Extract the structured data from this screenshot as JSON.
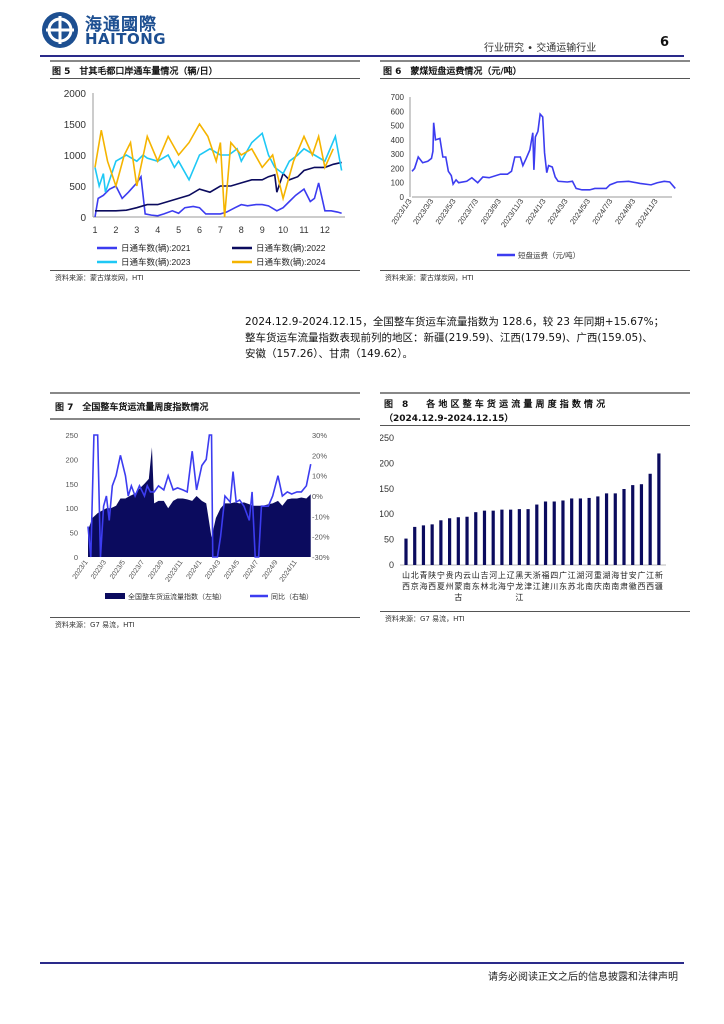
{
  "header": {
    "logo_cn": "海通國際",
    "logo_en": "HAITONG",
    "section": "行业研究 • 交通运输行业",
    "page_number": "6",
    "accent": "#1d4f91"
  },
  "paragraph": {
    "lines": [
      "2024.12.9-2024.12.15，全国整车货运车流量指数为 128.6，较 23 年同期+15.67%；",
      "整车货运车流量指数表现前列的地区：新疆(219.59)、江西(179.59)、广西(159.05)、",
      "安徽（157.26）、甘肃（149.62）。"
    ]
  },
  "figures": {
    "fig5": {
      "title": "图 5　甘其毛都口岸通车量情况（辆/日）",
      "source": "资料来源：蒙古煤炭网，HTI"
    },
    "fig6": {
      "title": "图 6　蒙煤短盘运费情况（元/吨）",
      "source": "资料来源：蒙古煤炭网，HTI"
    },
    "fig7": {
      "title": "图 7　全国整车货运流量周度指数情况",
      "source": "资料来源：G7 易流，HTI"
    },
    "fig8": {
      "title": "图　8　　各 地 区 整 车 货 运 流 量 周 度 指 数 情 况",
      "title2": "（2024.12.9-2024.12.15）",
      "source": "资料来源：G7 易流，HTI"
    }
  },
  "footer": {
    "disclaimer": "请务必阅读正文之后的信息披露和法律声明"
  },
  "chart_data": [
    {
      "id": "fig5",
      "type": "line",
      "xlabel": "",
      "ylabel": "",
      "xlim": [
        1,
        12.8
      ],
      "ylim": [
        0,
        2000
      ],
      "x_ticks": [
        "1",
        "2",
        "3",
        "4",
        "5",
        "6",
        "7",
        "8",
        "9",
        "10",
        "11",
        "12"
      ],
      "y_ticks": [
        "0",
        "500",
        "1000",
        "1500",
        "2000"
      ],
      "legend": "bottom",
      "series": [
        {
          "name": "日通车数(辆):2021",
          "color": "#3c3cf0",
          "x": [
            1,
            1.15,
            1.4,
            1.7,
            2,
            2.3,
            2.6,
            3,
            3.2,
            3.4,
            3.7,
            4,
            4.3,
            4.7,
            5,
            5.3,
            5.7,
            6,
            6.3,
            6.6,
            7,
            7.3,
            7.7,
            8,
            8.3,
            8.7,
            9,
            9.3,
            9.7,
            10,
            10.3,
            10.6,
            11,
            11.3,
            11.5,
            11.7,
            12,
            12.3,
            12.6,
            12.8
          ],
          "y": [
            0,
            300,
            350,
            450,
            500,
            300,
            400,
            550,
            650,
            50,
            30,
            20,
            50,
            100,
            60,
            150,
            170,
            150,
            50,
            50,
            50,
            80,
            150,
            200,
            180,
            200,
            200,
            180,
            100,
            150,
            250,
            350,
            450,
            250,
            300,
            550,
            100,
            100,
            80,
            60
          ]
        },
        {
          "name": "日通车数(辆):2022",
          "color": "#0b0b5e",
          "x": [
            1,
            1.5,
            2,
            2.5,
            3,
            3.5,
            4,
            4.5,
            5,
            5.5,
            6,
            6.5,
            7,
            7.5,
            8,
            8.5,
            9,
            9.3,
            9.6,
            9.7,
            10,
            10.3,
            10.7,
            11,
            11.5,
            12,
            12.4,
            12.8
          ],
          "y": [
            100,
            100,
            100,
            110,
            150,
            200,
            200,
            250,
            300,
            350,
            450,
            400,
            500,
            500,
            550,
            600,
            600,
            650,
            680,
            400,
            700,
            600,
            650,
            750,
            800,
            800,
            850,
            880
          ]
        },
        {
          "name": "日通车数(辆):2023",
          "color": "#1ec8f5",
          "x": [
            1,
            1.2,
            1.4,
            1.5,
            2,
            2.5,
            3,
            3.3,
            3.5,
            4,
            4.5,
            4.8,
            5,
            5.5,
            6,
            6.5,
            7,
            7.4,
            7.8,
            8,
            8.5,
            9,
            9.3,
            9.6,
            10,
            10.3,
            10.7,
            11,
            11.5,
            12,
            12.5,
            12.8
          ],
          "y": [
            800,
            500,
            700,
            400,
            900,
            1000,
            900,
            1000,
            950,
            900,
            1000,
            800,
            900,
            600,
            1000,
            1100,
            1000,
            1000,
            1100,
            900,
            1200,
            1350,
            1000,
            800,
            700,
            900,
            1000,
            1100,
            1000,
            900,
            1300,
            750
          ]
        },
        {
          "name": "日通车数(辆):2024",
          "color": "#f5b400",
          "x": [
            1,
            1.3,
            1.6,
            2,
            2.4,
            2.7,
            3,
            3.5,
            4,
            4.5,
            5,
            5.5,
            6,
            6.4,
            6.8,
            7,
            7.2,
            7.5,
            8,
            8.5,
            9,
            9.5,
            10,
            10.5,
            11,
            11.4,
            11.7,
            12,
            12.4
          ],
          "y": [
            800,
            1400,
            900,
            500,
            1000,
            1200,
            500,
            1300,
            900,
            1300,
            1000,
            1200,
            1500,
            1300,
            900,
            1200,
            0,
            1200,
            1000,
            1100,
            800,
            1000,
            300,
            900,
            1300,
            1000,
            1300,
            800,
            1100
          ]
        }
      ]
    },
    {
      "id": "fig6",
      "type": "line",
      "ylim": [
        0,
        700
      ],
      "y_ticks": [
        "0",
        "100",
        "200",
        "300",
        "400",
        "500",
        "600",
        "700"
      ],
      "x_ticks": [
        "2023/1/3",
        "2023/3/3",
        "2023/5/3",
        "2023/7/3",
        "2023/9/3",
        "2023/11/3",
        "2024/1/3",
        "2024/3/3",
        "2024/5/3",
        "2024/7/3",
        "2024/9/3",
        "2024/11/3"
      ],
      "legend": "bottom",
      "series": [
        {
          "name": "短盘运费（元/吨）",
          "color": "#3c3cf0",
          "x": [
            "2023-01-03",
            "2023-01-10",
            "2023-01-20",
            "2023-02-01",
            "2023-02-15",
            "2023-02-25",
            "2023-03-01",
            "2023-03-03",
            "2023-03-08",
            "2023-03-20",
            "2023-03-28",
            "2023-04-05",
            "2023-04-12",
            "2023-04-20",
            "2023-04-25",
            "2023-05-03",
            "2023-05-10",
            "2023-06-01",
            "2023-06-15",
            "2023-07-01",
            "2023-07-15",
            "2023-08-01",
            "2023-09-01",
            "2023-09-20",
            "2023-10-01",
            "2023-10-10",
            "2023-10-25",
            "2023-11-01",
            "2023-11-10",
            "2023-11-20",
            "2023-11-28",
            "2023-12-01",
            "2023-12-05",
            "2023-12-12",
            "2023-12-18",
            "2023-12-25",
            "2023-12-30",
            "2024-01-05",
            "2024-01-10",
            "2024-01-20",
            "2024-01-28",
            "2024-02-05",
            "2024-03-01",
            "2024-03-15",
            "2024-03-25",
            "2024-04-10",
            "2024-05-01",
            "2024-05-15",
            "2024-06-15",
            "2024-06-25",
            "2024-07-15",
            "2024-08-15",
            "2024-09-15",
            "2024-10-15",
            "2024-11-01",
            "2024-11-20",
            "2024-12-05",
            "2024-12-20"
          ],
          "y": [
            180,
            200,
            280,
            240,
            250,
            270,
            320,
            520,
            400,
            410,
            280,
            280,
            180,
            150,
            90,
            120,
            100,
            110,
            135,
            100,
            140,
            135,
            160,
            160,
            180,
            280,
            280,
            220,
            270,
            330,
            450,
            190,
            420,
            460,
            580,
            560,
            310,
            170,
            220,
            210,
            140,
            110,
            105,
            110,
            60,
            50,
            50,
            60,
            60,
            85,
            105,
            110,
            95,
            85,
            100,
            110,
            105,
            60
          ]
        }
      ]
    },
    {
      "id": "fig7",
      "type": "area+line",
      "ylim": [
        0,
        250
      ],
      "y2lim": [
        -30,
        30
      ],
      "y_ticks": [
        "0",
        "50",
        "100",
        "150",
        "200",
        "250"
      ],
      "y2_ticks": [
        "-30%",
        "-20%",
        "-10%",
        "0%",
        "10%",
        "20%",
        "30%"
      ],
      "x_ticks": [
        "2023/1",
        "2023/3",
        "2023/5",
        "2023/7",
        "2023/9",
        "2023/11",
        "2024/1",
        "2024/3",
        "2024/5",
        "2024/7",
        "2024/9",
        "2024/11"
      ],
      "legend": "bottom",
      "series": [
        {
          "name": "全国整车货运流量指数（左轴）",
          "color": "#0b0b5e",
          "axis": "left",
          "x": [
            "2023-01-01",
            "2023-01-15",
            "2023-02-01",
            "2023-02-15",
            "2023-03-01",
            "2023-03-15",
            "2023-04-01",
            "2023-04-15",
            "2023-05-01",
            "2023-05-15",
            "2023-06-01",
            "2023-06-15",
            "2023-07-01",
            "2023-07-15",
            "2023-07-25",
            "2023-08-01",
            "2023-08-15",
            "2023-09-01",
            "2023-09-15",
            "2023-10-01",
            "2023-10-15",
            "2023-11-01",
            "2023-11-15",
            "2023-12-01",
            "2023-12-15",
            "2024-01-01",
            "2024-01-15",
            "2024-02-01",
            "2024-02-15",
            "2024-03-01",
            "2024-03-15",
            "2024-04-01",
            "2024-04-15",
            "2024-05-01",
            "2024-05-15",
            "2024-06-01",
            "2024-06-15",
            "2024-07-01",
            "2024-07-15",
            "2024-08-01",
            "2024-08-15",
            "2024-09-01",
            "2024-09-15",
            "2024-10-01",
            "2024-10-15",
            "2024-11-01",
            "2024-11-15",
            "2024-12-01",
            "2024-12-15"
          ],
          "y": [
            55,
            80,
            90,
            95,
            100,
            100,
            105,
            120,
            120,
            125,
            130,
            140,
            150,
            160,
            225,
            110,
            115,
            115,
            100,
            115,
            120,
            120,
            118,
            115,
            125,
            115,
            110,
            40,
            80,
            100,
            110,
            110,
            112,
            110,
            112,
            108,
            105,
            105,
            105,
            108,
            110,
            115,
            105,
            118,
            120,
            120,
            122,
            120,
            128.6
          ]
        },
        {
          "name": "同比（右轴）",
          "color": "#3c3cf0",
          "axis": "right",
          "x": [
            "2023-01-01",
            "2023-01-10",
            "2023-01-20",
            "2023-02-01",
            "2023-02-10",
            "2023-02-20",
            "2023-03-01",
            "2023-03-10",
            "2023-03-20",
            "2023-04-01",
            "2023-04-15",
            "2023-05-01",
            "2023-05-10",
            "2023-05-20",
            "2023-06-01",
            "2023-06-15",
            "2023-07-01",
            "2023-07-10",
            "2023-07-20",
            "2023-08-01",
            "2023-08-15",
            "2023-09-01",
            "2023-09-15",
            "2023-10-01",
            "2023-10-15",
            "2023-11-01",
            "2023-11-15",
            "2023-12-01",
            "2023-12-15",
            "2024-01-01",
            "2024-01-15",
            "2024-01-25",
            "2024-02-01",
            "2024-02-05",
            "2024-02-20",
            "2024-03-01",
            "2024-03-15",
            "2024-04-01",
            "2024-04-10",
            "2024-04-20",
            "2024-05-01",
            "2024-05-15",
            "2024-06-01",
            "2024-06-10",
            "2024-06-20",
            "2024-07-01",
            "2024-07-10",
            "2024-08-01",
            "2024-08-15",
            "2024-09-01",
            "2024-09-15",
            "2024-10-01",
            "2024-10-15",
            "2024-11-01",
            "2024-11-15",
            "2024-12-01",
            "2024-12-15"
          ],
          "y": [
            -15,
            -30,
            30,
            30,
            -30,
            -5,
            0,
            -12,
            5,
            10,
            20,
            10,
            0,
            5,
            0,
            5,
            0,
            5,
            2,
            2,
            5,
            3,
            10,
            3,
            4,
            3,
            2,
            22,
            3,
            15,
            18,
            30,
            30,
            -30,
            -30,
            -20,
            0,
            -3,
            12,
            -3,
            -2,
            -5,
            -12,
            2,
            -30,
            -30,
            -5,
            -5,
            0,
            10,
            0,
            2,
            1,
            2,
            2,
            5,
            15.67
          ]
        }
      ]
    },
    {
      "id": "fig8",
      "type": "bar",
      "ylim": [
        0,
        250
      ],
      "y_ticks": [
        "0",
        "50",
        "100",
        "150",
        "200",
        "250"
      ],
      "bar_color": "#0b0b5e",
      "categories": [
        "山西",
        "北京",
        "青海",
        "陕西",
        "宁夏",
        "贵州",
        "内蒙古",
        "云南",
        "山东",
        "吉林",
        "河北",
        "上海",
        "辽宁",
        "黑龙江",
        "天津",
        "浙江",
        "福建",
        "四川",
        "广东",
        "江苏",
        "湖北",
        "河南",
        "重庆",
        "湖南",
        "海南",
        "甘肃",
        "安徽",
        "广西",
        "江西",
        "新疆"
      ],
      "values": [
        52,
        75,
        78,
        80,
        88,
        92,
        94,
        95,
        104,
        107,
        107,
        109,
        109,
        110,
        110,
        119,
        125,
        125,
        127,
        131,
        131,
        132,
        135,
        141,
        141,
        149.62,
        157.26,
        159.05,
        179.59,
        219.59
      ]
    }
  ]
}
